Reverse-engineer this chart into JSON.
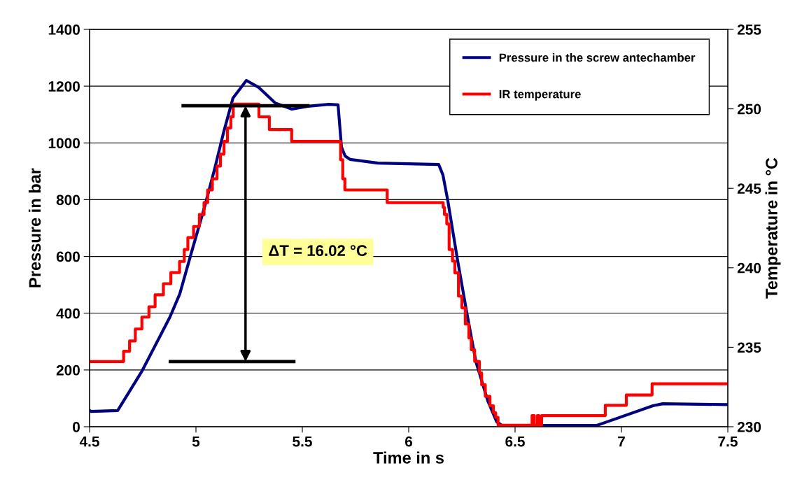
{
  "chart_data": {
    "type": "line",
    "xlabel": "Time in s",
    "ylabel": "Pressure in bar",
    "y2label": "Temperature in °C",
    "xlim": [
      4.5,
      7.5
    ],
    "xticks": [
      4.5,
      5,
      5.5,
      6,
      6.5,
      7,
      7.5
    ],
    "ylim": [
      0,
      1400
    ],
    "yticks": [
      0,
      200,
      400,
      600,
      800,
      1000,
      1200,
      1400
    ],
    "y2lim": [
      230,
      255
    ],
    "y2ticks": [
      230,
      235,
      240,
      245,
      250,
      255
    ],
    "grid": "y",
    "legend": "top right",
    "marker": "none",
    "line_style": "solid",
    "annotations": [
      "ΔT = 16.02 °C"
    ],
    "series": [
      {
        "name": "Pressure in the screw antechamber",
        "color": "#000080",
        "type": "line",
        "x": [
          4.5,
          4.507,
          4.632,
          4.747,
          4.878,
          4.924,
          4.977,
          5.043,
          5.089,
          5.132,
          5.174,
          5.237,
          5.296,
          5.372,
          5.451,
          5.526,
          5.625,
          5.668,
          5.684,
          5.701,
          5.724,
          5.855,
          6.141,
          6.161,
          6.184,
          6.227,
          6.273,
          6.316,
          6.372,
          6.414,
          6.438,
          6.885,
          6.931,
          7.148,
          7.194,
          7.5
        ],
        "values": [
          57,
          54,
          57,
          197,
          387,
          468,
          609,
          781,
          912,
          1043,
          1158,
          1220,
          1195,
          1141,
          1119,
          1129,
          1136,
          1134,
          986,
          954,
          942,
          929,
          924,
          887,
          796,
          599,
          402,
          229,
          91,
          17,
          5,
          5,
          17,
          74,
          81,
          78
        ]
      },
      {
        "name": "IR temperature",
        "color": "#ff0000",
        "type": "step",
        "axis": "y2",
        "x": [
          4.5,
          4.66,
          4.688,
          4.715,
          4.746,
          4.779,
          4.808,
          4.847,
          4.882,
          4.923,
          4.945,
          4.962,
          4.989,
          5.016,
          5.038,
          5.055,
          5.077,
          5.099,
          5.115,
          5.132,
          5.148,
          5.164,
          5.175,
          5.296,
          5.345,
          5.45,
          5.68,
          5.69,
          5.7,
          5.899,
          6.162,
          6.168,
          6.179,
          6.19,
          6.206,
          6.217,
          6.234,
          6.25,
          6.266,
          6.283,
          6.294,
          6.31,
          6.332,
          6.343,
          6.36,
          6.382,
          6.398,
          6.409,
          6.42,
          6.58,
          6.59,
          6.605,
          6.612,
          6.625,
          6.924,
          7.023,
          7.144,
          7.5
        ],
        "values": [
          234.1,
          234.75,
          235.4,
          236.15,
          236.9,
          237.55,
          238.3,
          239.0,
          239.7,
          240.4,
          241.15,
          241.9,
          242.6,
          243.35,
          244.1,
          244.9,
          245.6,
          246.4,
          247.15,
          247.95,
          248.8,
          249.5,
          250.3,
          249.5,
          248.7,
          247.95,
          246.8,
          245.6,
          244.9,
          244.1,
          243.8,
          243.35,
          242.76,
          241.15,
          240.42,
          239.68,
          238.22,
          237.48,
          236.46,
          235.58,
          234.84,
          234.11,
          233.38,
          232.64,
          231.91,
          231.32,
          230.88,
          230.59,
          230.1,
          230.7,
          230.1,
          230.7,
          230.1,
          230.7,
          231.35,
          232.0,
          232.7,
          232.7
        ]
      },
      {
        "color": "#000000",
        "type": "line",
        "axis": "y2",
        "x": [
          4.94,
          5.526
        ],
        "values": [
          250.2,
          250.2
        ]
      },
      {
        "color": "#000000",
        "type": "line",
        "axis": "y2",
        "x": [
          4.88,
          5.46
        ],
        "values": [
          234.1,
          234.1
        ]
      }
    ]
  }
}
